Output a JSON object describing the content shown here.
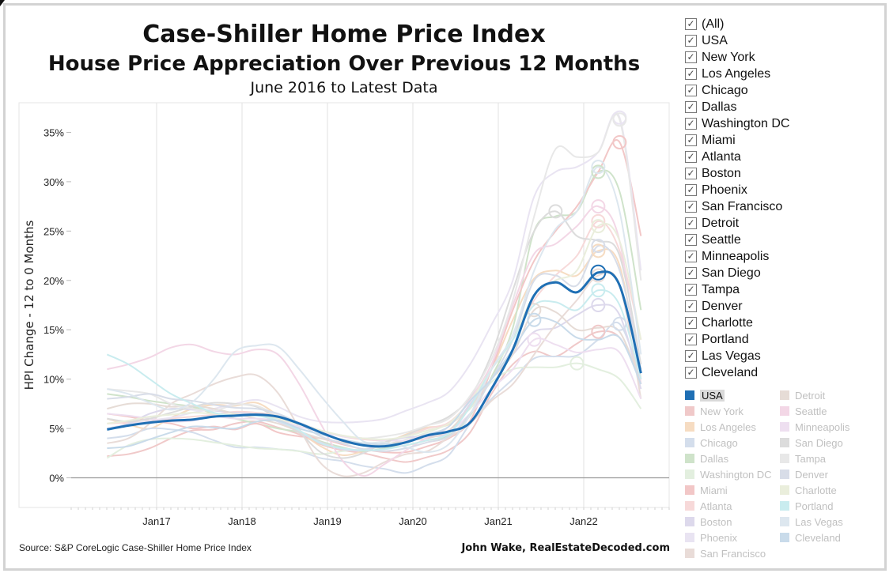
{
  "header": {
    "title": "Case-Shiller Home Price Index",
    "subtitle": "House Price Appreciation Over Previous 12 Months",
    "date_range": "June 2016 to Latest Data"
  },
  "footer": {
    "source": "Source: S&P CoreLogic Case-Shiller Home Price Index",
    "credit": "John Wake, RealEstateDecoded.com"
  },
  "filter": {
    "items": [
      {
        "label": "(All)",
        "checked": true
      },
      {
        "label": "USA",
        "checked": true
      },
      {
        "label": "New York",
        "checked": true
      },
      {
        "label": "Los Angeles",
        "checked": true
      },
      {
        "label": "Chicago",
        "checked": true
      },
      {
        "label": "Dallas",
        "checked": true
      },
      {
        "label": "Washington DC",
        "checked": true
      },
      {
        "label": "Miami",
        "checked": true
      },
      {
        "label": "Atlanta",
        "checked": true
      },
      {
        "label": "Boston",
        "checked": true
      },
      {
        "label": "Phoenix",
        "checked": true
      },
      {
        "label": "San Francisco",
        "checked": true
      },
      {
        "label": "Detroit",
        "checked": true
      },
      {
        "label": "Seattle",
        "checked": true
      },
      {
        "label": "Minneapolis",
        "checked": true
      },
      {
        "label": "San Diego",
        "checked": true
      },
      {
        "label": "Tampa",
        "checked": true
      },
      {
        "label": "Denver",
        "checked": true
      },
      {
        "label": "Charlotte",
        "checked": true
      },
      {
        "label": "Portland",
        "checked": true
      },
      {
        "label": "Las Vegas",
        "checked": true
      },
      {
        "label": "Cleveland",
        "checked": true
      }
    ]
  },
  "legend": {
    "items": [
      {
        "label": "USA",
        "color": "#1f6fb4",
        "active": true
      },
      {
        "label": "Detroit",
        "color": "#e6dcd6"
      },
      {
        "label": "New York",
        "color": "#f0c9c9"
      },
      {
        "label": "Seattle",
        "color": "#f3d7e6"
      },
      {
        "label": "Los Angeles",
        "color": "#f6dcc2"
      },
      {
        "label": "Minneapolis",
        "color": "#eedff0"
      },
      {
        "label": "Chicago",
        "color": "#d4deec"
      },
      {
        "label": "San Diego",
        "color": "#dcdcdc"
      },
      {
        "label": "Dallas",
        "color": "#cfe3ca"
      },
      {
        "label": "Tampa",
        "color": "#e8e8e8"
      },
      {
        "label": "Washington DC",
        "color": "#e3efdf"
      },
      {
        "label": "Denver",
        "color": "#d8dde8"
      },
      {
        "label": "Miami",
        "color": "#f2c7c7"
      },
      {
        "label": "Charlotte",
        "color": "#eaeedc"
      },
      {
        "label": "Atlanta",
        "color": "#f7d9d9"
      },
      {
        "label": "Portland",
        "color": "#c9ecef"
      },
      {
        "label": "Boston",
        "color": "#ddd9ec"
      },
      {
        "label": "Las Vegas",
        "color": "#dde7ef"
      },
      {
        "label": "Phoenix",
        "color": "#e9e4f2"
      },
      {
        "label": "Cleveland",
        "color": "#c9dbea"
      },
      {
        "label": "San Francisco",
        "color": "#e9dcd8"
      }
    ]
  },
  "chart_data": {
    "type": "line",
    "ylabel": "HPI Change - 12 to 0 Months",
    "ylim": [
      -3,
      38
    ],
    "y_ticks": [
      0,
      5,
      10,
      15,
      20,
      25,
      30,
      35
    ],
    "y_tick_labels": [
      "0%",
      "5%",
      "10%",
      "15%",
      "20%",
      "25%",
      "30%",
      "35%"
    ],
    "x_tick_labels": [
      "Jan17",
      "Jan18",
      "Jan19",
      "Jan20",
      "Jan21",
      "Jan22"
    ],
    "x_tick_positions": [
      2017.0,
      2018.0,
      2019.0,
      2020.0,
      2021.0,
      2022.0
    ],
    "xlim": [
      2016.0,
      2023.0
    ],
    "grid": true,
    "x": [
      2016.42,
      2016.67,
      2016.92,
      2017.17,
      2017.42,
      2017.67,
      2017.92,
      2018.17,
      2018.42,
      2018.67,
      2018.92,
      2019.17,
      2019.42,
      2019.67,
      2019.92,
      2020.17,
      2020.42,
      2020.67,
      2020.92,
      2021.17,
      2021.42,
      2021.67,
      2021.92,
      2022.17,
      2022.42,
      2022.67
    ],
    "highlight_marker": {
      "series": "USA",
      "x": 2022.17,
      "y": 20.8
    },
    "series": [
      {
        "name": "USA",
        "color": "#1f6fb4",
        "values": [
          4.9,
          5.3,
          5.6,
          5.8,
          5.9,
          6.2,
          6.3,
          6.4,
          6.2,
          5.5,
          4.6,
          3.8,
          3.3,
          3.2,
          3.6,
          4.3,
          4.7,
          5.6,
          9.0,
          13.0,
          18.5,
          19.8,
          18.8,
          20.8,
          19.5,
          10.6
        ]
      },
      {
        "name": "New York",
        "color": "#f0c9c9",
        "values": [
          2.2,
          2.4,
          3.0,
          4.0,
          4.8,
          4.9,
          5.5,
          5.7,
          5.1,
          4.4,
          3.4,
          2.8,
          2.5,
          2.0,
          1.6,
          2.1,
          2.8,
          4.6,
          8.5,
          11.5,
          12.8,
          12.3,
          13.6,
          14.8,
          14.2,
          10.0
        ]
      },
      {
        "name": "Los Angeles",
        "color": "#f6dcc2",
        "values": [
          6.0,
          5.4,
          5.0,
          6.1,
          7.0,
          7.4,
          7.3,
          7.6,
          6.3,
          4.7,
          3.2,
          2.3,
          2.7,
          3.5,
          4.4,
          5.1,
          5.4,
          7.3,
          11.0,
          16.0,
          20.2,
          21.0,
          20.5,
          23.0,
          21.5,
          10.0
        ]
      },
      {
        "name": "Chicago",
        "color": "#d4deec",
        "values": [
          4.0,
          4.3,
          5.0,
          4.9,
          4.6,
          3.8,
          3.1,
          3.1,
          2.9,
          2.7,
          2.0,
          1.7,
          1.2,
          0.9,
          0.5,
          1.3,
          2.3,
          5.5,
          8.0,
          10.0,
          12.1,
          12.3,
          12.4,
          14.0,
          15.6,
          10.0
        ]
      },
      {
        "name": "Dallas",
        "color": "#cfe3ca",
        "values": [
          8.5,
          8.2,
          7.8,
          7.5,
          7.2,
          6.5,
          6.0,
          5.5,
          5.0,
          4.6,
          3.7,
          3.1,
          2.7,
          3.0,
          3.3,
          3.8,
          4.3,
          6.3,
          10.2,
          15.2,
          25.0,
          26.5,
          27.0,
          31.0,
          29.0,
          17.0
        ]
      },
      {
        "name": "Washington DC",
        "color": "#e3efdf",
        "values": [
          2.0,
          3.3,
          3.9,
          4.0,
          3.9,
          3.6,
          3.3,
          3.0,
          2.9,
          2.7,
          2.4,
          2.7,
          2.9,
          3.2,
          3.9,
          4.6,
          5.5,
          7.0,
          9.7,
          11.0,
          11.2,
          11.2,
          11.6,
          11.0,
          10.0,
          7.0
        ]
      },
      {
        "name": "Miami",
        "color": "#f2c7c7",
        "values": [
          6.5,
          6.2,
          5.8,
          5.5,
          5.0,
          5.2,
          4.9,
          5.5,
          4.6,
          4.2,
          4.0,
          3.4,
          2.9,
          2.6,
          2.6,
          3.2,
          4.0,
          5.8,
          11.0,
          17.0,
          22.0,
          25.0,
          27.5,
          31.0,
          34.0,
          24.5
        ]
      },
      {
        "name": "Atlanta",
        "color": "#f7d9d9",
        "values": [
          5.5,
          5.6,
          5.7,
          6.0,
          6.2,
          6.4,
          6.7,
          6.6,
          6.3,
          5.5,
          4.8,
          4.2,
          3.9,
          3.8,
          4.2,
          5.0,
          5.6,
          7.8,
          11.0,
          14.0,
          18.0,
          20.5,
          22.5,
          26.0,
          23.0,
          14.0
        ]
      },
      {
        "name": "Boston",
        "color": "#ddd9ec",
        "values": [
          5.0,
          5.5,
          6.5,
          7.0,
          6.9,
          6.8,
          6.6,
          6.4,
          5.7,
          4.6,
          3.6,
          2.9,
          2.8,
          3.6,
          4.1,
          4.2,
          4.6,
          7.5,
          10.0,
          12.5,
          14.8,
          15.2,
          16.5,
          17.5,
          16.5,
          9.0
        ]
      },
      {
        "name": "Phoenix",
        "color": "#e9e4f2",
        "values": [
          5.0,
          5.4,
          5.8,
          6.1,
          6.6,
          7.0,
          7.5,
          7.9,
          7.2,
          6.2,
          5.7,
          5.6,
          5.7,
          6.0,
          6.8,
          7.6,
          8.7,
          11.5,
          15.5,
          20.0,
          28.5,
          31.0,
          31.5,
          33.0,
          36.5,
          21.0
        ]
      },
      {
        "name": "San Francisco",
        "color": "#e9dcd8",
        "values": [
          3.5,
          4.0,
          5.5,
          7.5,
          8.5,
          9.5,
          10.2,
          10.4,
          8.6,
          5.0,
          1.5,
          0.2,
          0.5,
          1.6,
          2.4,
          2.7,
          4.1,
          5.5,
          7.8,
          9.5,
          12.5,
          15.5,
          18.0,
          20.5,
          19.5,
          8.0
        ]
      },
      {
        "name": "Detroit",
        "color": "#e6dcd6",
        "values": [
          7.0,
          7.5,
          7.5,
          7.2,
          7.3,
          7.0,
          6.5,
          6.0,
          5.5,
          4.7,
          4.0,
          3.6,
          3.4,
          3.4,
          3.8,
          4.0,
          4.8,
          7.2,
          10.0,
          12.5,
          17.0,
          16.8,
          15.0,
          15.2,
          14.8,
          9.5
        ]
      },
      {
        "name": "Seattle",
        "color": "#f3d7e6",
        "values": [
          11.0,
          11.5,
          12.2,
          13.2,
          13.5,
          12.8,
          12.5,
          13.0,
          12.5,
          9.5,
          5.5,
          1.8,
          0.2,
          1.4,
          2.8,
          4.1,
          5.2,
          8.0,
          11.5,
          17.5,
          22.7,
          23.7,
          25.5,
          27.5,
          24.0,
          9.5
        ]
      },
      {
        "name": "Minneapolis",
        "color": "#eedff0",
        "values": [
          6.5,
          6.3,
          6.0,
          5.7,
          5.8,
          6.2,
          6.0,
          6.0,
          5.8,
          5.2,
          4.7,
          4.2,
          4.0,
          3.8,
          3.8,
          4.4,
          4.7,
          6.5,
          9.0,
          11.0,
          14.0,
          13.5,
          12.7,
          13.0,
          12.7,
          8.0
        ]
      },
      {
        "name": "San Diego",
        "color": "#dcdcdc",
        "values": [
          6.0,
          5.7,
          6.0,
          6.6,
          7.2,
          7.6,
          7.5,
          7.2,
          6.0,
          4.6,
          2.6,
          2.0,
          2.5,
          3.6,
          4.3,
          5.3,
          6.2,
          8.2,
          12.5,
          19.0,
          25.0,
          27.0,
          24.5,
          24.0,
          22.5,
          11.5
        ]
      },
      {
        "name": "Tampa",
        "color": "#e8e8e8",
        "values": [
          9.0,
          8.8,
          8.5,
          7.5,
          7.0,
          6.8,
          7.4,
          7.3,
          6.3,
          5.6,
          4.8,
          4.3,
          4.0,
          4.2,
          4.6,
          5.3,
          6.0,
          8.3,
          12.0,
          18.0,
          26.5,
          33.3,
          32.5,
          33.0,
          36.3,
          20.0
        ]
      },
      {
        "name": "Denver",
        "color": "#d8dde8",
        "values": [
          8.0,
          8.2,
          8.5,
          8.0,
          7.8,
          7.4,
          7.1,
          7.0,
          6.5,
          5.5,
          4.2,
          3.5,
          2.9,
          2.7,
          3.0,
          3.6,
          4.2,
          6.5,
          10.0,
          14.0,
          20.0,
          20.5,
          19.5,
          23.5,
          21.0,
          11.0
        ]
      },
      {
        "name": "Charlotte",
        "color": "#eaeedc",
        "values": [
          5.5,
          5.8,
          6.2,
          6.4,
          6.6,
          6.5,
          6.4,
          6.4,
          6.0,
          5.4,
          4.8,
          4.3,
          4.0,
          3.9,
          4.2,
          4.8,
          5.5,
          7.8,
          11.0,
          14.0,
          18.5,
          20.0,
          21.0,
          25.5,
          24.0,
          14.0
        ]
      },
      {
        "name": "Portland",
        "color": "#c9ecef",
        "values": [
          12.5,
          11.5,
          10.0,
          8.5,
          7.5,
          6.6,
          6.3,
          6.3,
          5.8,
          4.8,
          3.5,
          3.0,
          2.8,
          2.9,
          3.3,
          3.8,
          4.5,
          7.2,
          11.0,
          14.0,
          17.5,
          17.8,
          17.0,
          19.0,
          17.5,
          10.0
        ]
      },
      {
        "name": "Las Vegas",
        "color": "#dde7ef",
        "values": [
          9.0,
          8.5,
          7.6,
          6.9,
          7.7,
          10.0,
          12.8,
          13.4,
          13.3,
          11.0,
          8.3,
          5.8,
          3.7,
          3.6,
          3.1,
          2.6,
          3.4,
          6.4,
          11.0,
          14.5,
          21.0,
          25.2,
          27.0,
          31.5,
          27.0,
          12.5
        ]
      },
      {
        "name": "Cleveland",
        "color": "#c9dbea",
        "values": [
          3.0,
          3.2,
          3.9,
          4.6,
          5.2,
          5.1,
          5.0,
          5.7,
          5.8,
          5.0,
          4.4,
          3.9,
          3.5,
          3.4,
          3.6,
          4.4,
          5.2,
          7.8,
          10.0,
          13.0,
          16.0,
          15.8,
          14.2,
          14.0,
          14.2,
          9.5
        ]
      }
    ]
  }
}
